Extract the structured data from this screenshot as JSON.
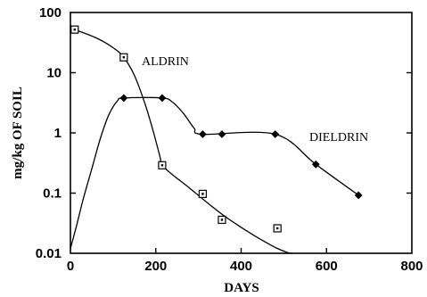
{
  "chart_data": {
    "type": "line",
    "title": "",
    "xlabel": "DAYS",
    "ylabel": "mg/kg OF SOIL",
    "xlim": [
      0,
      800
    ],
    "ylim": [
      0.01,
      100
    ],
    "yscale": "log",
    "grid": false,
    "x_ticks": [
      0,
      200,
      400,
      600,
      800
    ],
    "x_tick_labels": [
      "0",
      "200",
      "400",
      "600",
      "800"
    ],
    "y_ticks": [
      0.01,
      0.1,
      1,
      10,
      100
    ],
    "y_tick_labels": [
      "0.01",
      "0.1",
      "1",
      "10",
      "100"
    ],
    "series": [
      {
        "name": "ALDRIN",
        "marker": "square",
        "points": [
          {
            "x": 10,
            "y": 52
          },
          {
            "x": 125,
            "y": 18
          },
          {
            "x": 215,
            "y": 0.29
          },
          {
            "x": 310,
            "y": 0.097
          },
          {
            "x": 355,
            "y": 0.036
          },
          {
            "x": 485,
            "y": 0.026
          }
        ],
        "curve": [
          {
            "x": 10,
            "y": 52
          },
          {
            "x": 60,
            "y": 38
          },
          {
            "x": 100,
            "y": 26
          },
          {
            "x": 125,
            "y": 18
          },
          {
            "x": 150,
            "y": 9
          },
          {
            "x": 175,
            "y": 3
          },
          {
            "x": 195,
            "y": 1
          },
          {
            "x": 210,
            "y": 0.4
          },
          {
            "x": 215,
            "y": 0.29
          },
          {
            "x": 240,
            "y": 0.2
          },
          {
            "x": 280,
            "y": 0.12
          },
          {
            "x": 320,
            "y": 0.07
          },
          {
            "x": 360,
            "y": 0.042
          },
          {
            "x": 400,
            "y": 0.027
          },
          {
            "x": 440,
            "y": 0.018
          },
          {
            "x": 480,
            "y": 0.0125
          },
          {
            "x": 510,
            "y": 0.0102
          },
          {
            "x": 520,
            "y": 0.01
          }
        ]
      },
      {
        "name": "DIELDRIN",
        "marker": "diamond",
        "points": [
          {
            "x": 125,
            "y": 3.8
          },
          {
            "x": 215,
            "y": 3.8
          },
          {
            "x": 310,
            "y": 0.95
          },
          {
            "x": 355,
            "y": 0.95
          },
          {
            "x": 480,
            "y": 0.95
          },
          {
            "x": 575,
            "y": 0.3
          },
          {
            "x": 675,
            "y": 0.092
          }
        ],
        "curve": [
          {
            "x": 0,
            "y": 0.012
          },
          {
            "x": 15,
            "y": 0.03
          },
          {
            "x": 30,
            "y": 0.08
          },
          {
            "x": 50,
            "y": 0.25
          },
          {
            "x": 70,
            "y": 0.8
          },
          {
            "x": 90,
            "y": 2
          },
          {
            "x": 110,
            "y": 3.4
          },
          {
            "x": 125,
            "y": 3.8
          },
          {
            "x": 215,
            "y": 3.8
          },
          {
            "x": 240,
            "y": 3.2
          },
          {
            "x": 265,
            "y": 2.1
          },
          {
            "x": 290,
            "y": 1.2
          },
          {
            "x": 310,
            "y": 0.95
          },
          {
            "x": 480,
            "y": 0.95
          },
          {
            "x": 575,
            "y": 0.3
          },
          {
            "x": 675,
            "y": 0.092
          }
        ]
      }
    ]
  }
}
